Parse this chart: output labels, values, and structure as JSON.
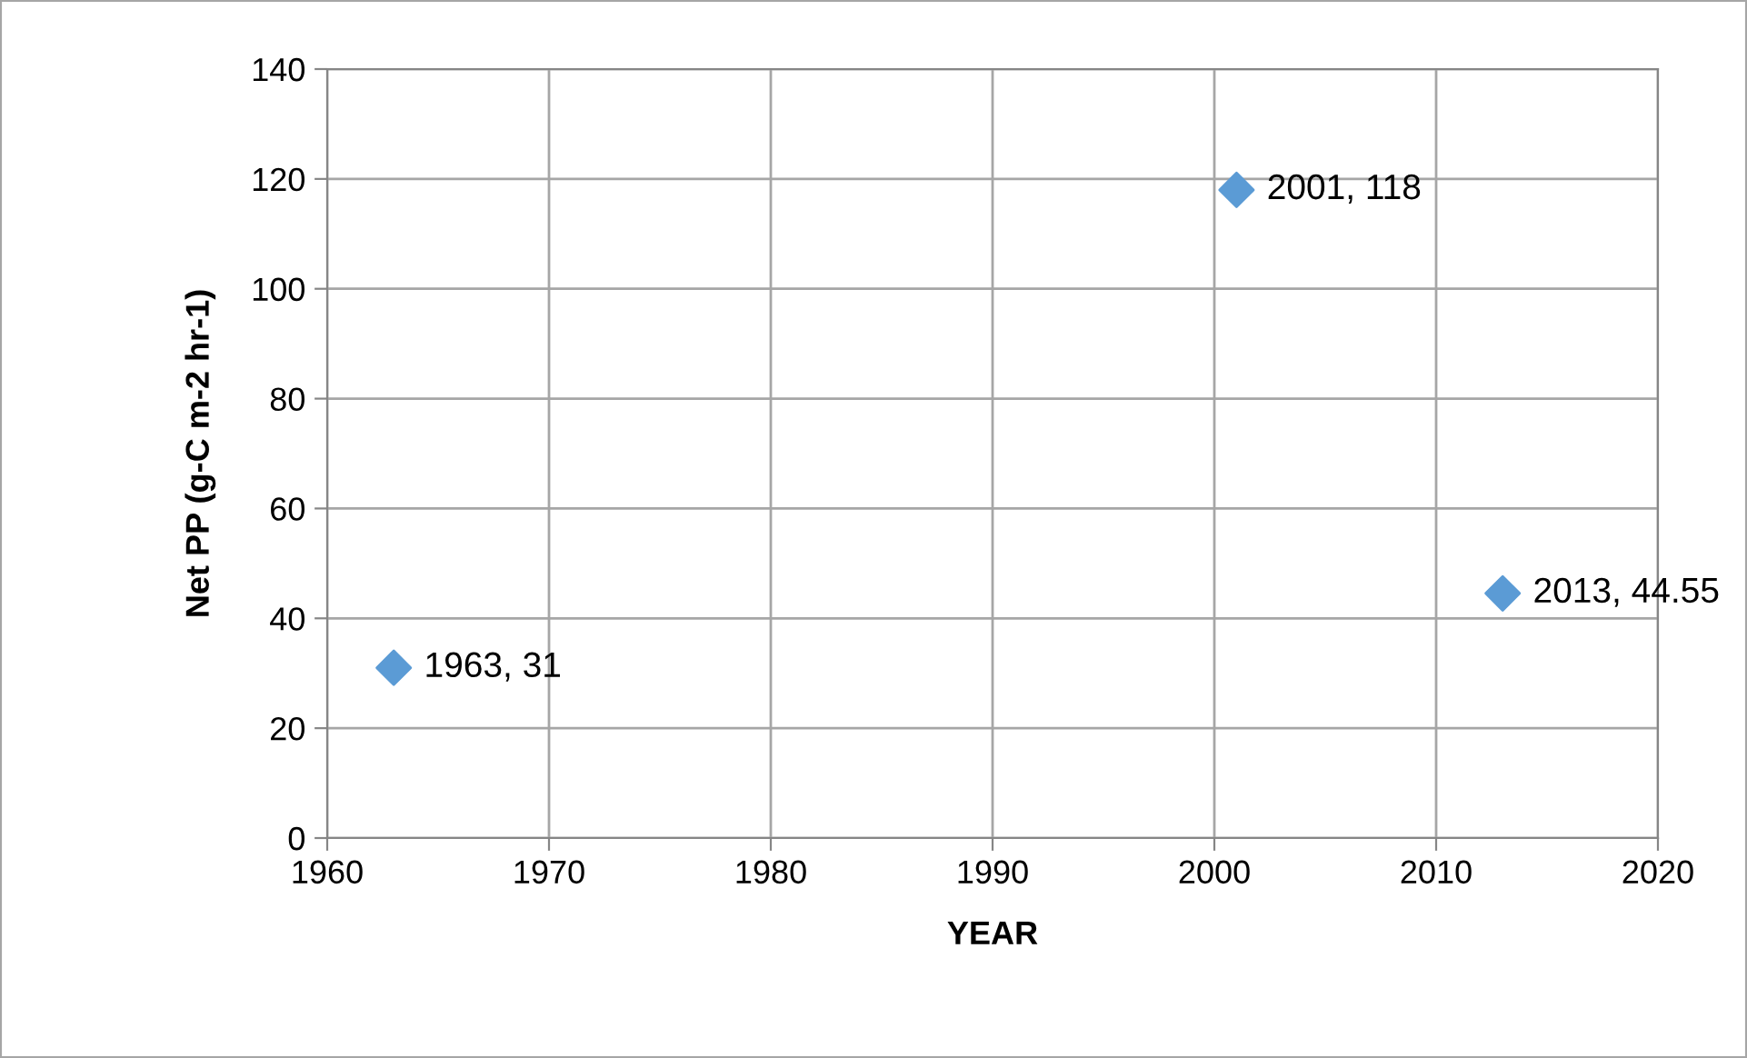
{
  "chart_data": {
    "type": "scatter",
    "xlabel": "YEAR",
    "ylabel": "Net PP (g-C m-2 hr-1)",
    "x": [
      1963,
      2001,
      2013
    ],
    "series": [
      {
        "color": "#5b9bd5",
        "values": [
          31,
          118,
          44.55
        ],
        "value_labels": [
          "1963, 31",
          "2001, 118",
          "2013, 44.55"
        ]
      }
    ],
    "xlim": [
      1960,
      2020
    ],
    "xticks": [
      1960,
      1970,
      1980,
      1990,
      2000,
      2010,
      2020
    ],
    "ylim": [
      0,
      140
    ],
    "yticks": [
      0,
      20,
      40,
      60,
      80,
      100,
      120,
      140
    ],
    "grid": true,
    "marker": "diamond"
  }
}
